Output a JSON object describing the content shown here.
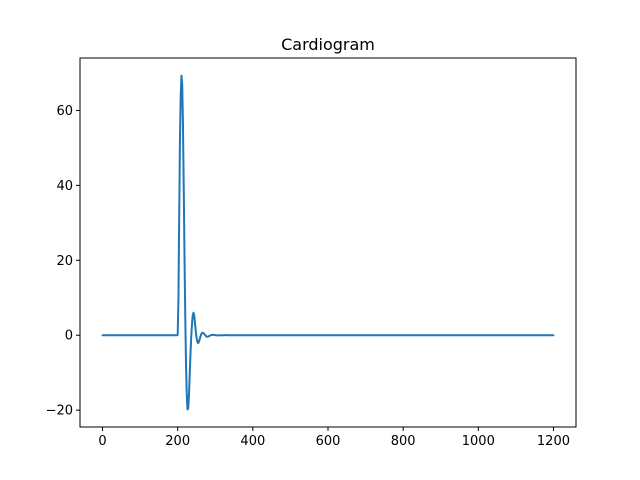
{
  "chart_data": {
    "type": "line",
    "title": "Cardiogram",
    "xlabel": "",
    "ylabel": "",
    "xlim": [
      -60,
      1260
    ],
    "ylim": [
      -24.5,
      74
    ],
    "grid": false,
    "legend": "none",
    "xticks": [
      0,
      200,
      400,
      600,
      800,
      1000,
      1200
    ],
    "xtick_labels": [
      "0",
      "200",
      "400",
      "600",
      "800",
      "1000",
      "1200"
    ],
    "yticks": [
      -20,
      0,
      20,
      40,
      60
    ],
    "ytick_labels": [
      "−20",
      "0",
      "20",
      "40",
      "60"
    ],
    "series": [
      {
        "color": "#1f77b4",
        "x": [
          0,
          100,
          199,
          200,
          202,
          204,
          206,
          208,
          210,
          212,
          214,
          216,
          218,
          220,
          222,
          224,
          226,
          228,
          230,
          232,
          234,
          236,
          238,
          240,
          242,
          244,
          246,
          248,
          250,
          252,
          254,
          256,
          258,
          260,
          262,
          264,
          266,
          268,
          270,
          272,
          274,
          276,
          278,
          280,
          282,
          284,
          286,
          288,
          290,
          292,
          294,
          296,
          298,
          300,
          302,
          304,
          306,
          308,
          310,
          312,
          314,
          316,
          318,
          320,
          322,
          324,
          326,
          328,
          330,
          332,
          334,
          336,
          338,
          340,
          344,
          348,
          352,
          356,
          360,
          380,
          400,
          600,
          800,
          1000,
          1200
        ],
        "y": [
          0,
          0,
          0,
          0.2,
          10,
          32,
          52,
          64,
          69.3,
          67,
          56,
          40,
          22,
          6,
          -7,
          -15.5,
          -19.8,
          -19.5,
          -16,
          -10.5,
          -5,
          -0.5,
          3,
          5.3,
          6,
          5.2,
          3.3,
          1.2,
          -0.6,
          -1.6,
          -2.1,
          -1.9,
          -1.3,
          -0.5,
          0.1,
          0.5,
          0.7,
          0.6,
          0.4,
          0.2,
          -0.1,
          -0.3,
          -0.4,
          -0.4,
          -0.3,
          -0.2,
          -0.1,
          0,
          0.05,
          0.1,
          0.1,
          0.08,
          0.05,
          0.02,
          0,
          -0.02,
          -0.03,
          -0.04,
          -0.04,
          -0.03,
          -0.02,
          -0.01,
          0,
          0,
          0,
          0.01,
          0.01,
          0.01,
          0,
          0,
          0,
          0,
          0,
          0,
          0,
          0,
          0,
          0,
          0,
          0,
          0,
          0,
          0,
          0,
          0
        ]
      }
    ]
  }
}
